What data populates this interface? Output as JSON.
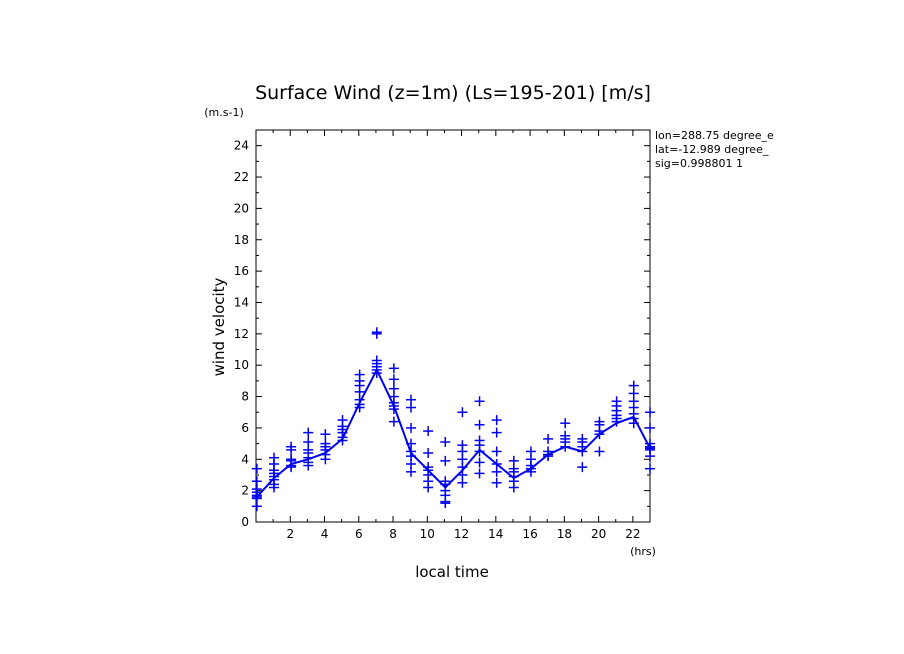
{
  "chart_data": {
    "type": "line",
    "title": "Surface Wind (z=1m) (Ls=195-201) [m/s]",
    "units": "(m.s-1)",
    "xlabel": "local time",
    "xunit": "(hrs)",
    "ylabel": "wind velocity",
    "xlim": [
      0,
      23
    ],
    "ylim": [
      0,
      25
    ],
    "xticks": [
      2,
      4,
      6,
      8,
      10,
      12,
      14,
      16,
      18,
      20,
      22
    ],
    "yticks": [
      0,
      2,
      4,
      6,
      8,
      10,
      12,
      14,
      16,
      18,
      20,
      22,
      24
    ],
    "info_lines": [
      "lon=288.75 degree_e",
      "lat=-12.989 degree_",
      "sig=0.998801 1"
    ],
    "color": "#0000ee",
    "series": [
      {
        "style": "line",
        "x": [
          0.05,
          1.05,
          2.05,
          3.05,
          4.05,
          5.05,
          6.05,
          7.05,
          8.05,
          9.05,
          10.05,
          11.05,
          12.05,
          13.05,
          14.05,
          15.05,
          16.05,
          17.05,
          18.05,
          19.05,
          20.05,
          21.05,
          22.05,
          23.0
        ],
        "values": [
          1.6,
          2.8,
          3.7,
          4.0,
          4.4,
          5.3,
          7.6,
          9.7,
          7.4,
          4.4,
          3.3,
          2.2,
          3.3,
          4.6,
          3.7,
          2.8,
          3.4,
          4.3,
          4.8,
          4.5,
          5.6,
          6.3,
          6.7,
          4.7
        ]
      },
      {
        "style": "markers",
        "marker": "+",
        "points": [
          [
            0.05,
            3.4
          ],
          [
            0.05,
            2.6
          ],
          [
            0.05,
            2.1
          ],
          [
            0.05,
            1.9
          ],
          [
            0.05,
            1.7
          ],
          [
            0.05,
            1.6
          ],
          [
            0.05,
            1.5
          ],
          [
            0.05,
            1.0
          ],
          [
            1.05,
            4.1
          ],
          [
            1.05,
            3.7
          ],
          [
            1.05,
            3.3
          ],
          [
            1.05,
            3.1
          ],
          [
            1.05,
            2.9
          ],
          [
            1.05,
            2.7
          ],
          [
            1.05,
            2.4
          ],
          [
            1.05,
            2.2
          ],
          [
            2.05,
            4.8
          ],
          [
            2.05,
            4.6
          ],
          [
            2.05,
            4.0
          ],
          [
            2.05,
            3.9
          ],
          [
            2.05,
            3.6
          ],
          [
            2.05,
            3.5
          ],
          [
            3.05,
            5.7
          ],
          [
            3.05,
            5.1
          ],
          [
            3.05,
            4.6
          ],
          [
            3.05,
            4.4
          ],
          [
            3.05,
            4.1
          ],
          [
            3.05,
            3.8
          ],
          [
            3.05,
            3.6
          ],
          [
            4.05,
            5.6
          ],
          [
            4.05,
            5.0
          ],
          [
            4.05,
            4.8
          ],
          [
            4.05,
            4.6
          ],
          [
            4.05,
            4.3
          ],
          [
            4.05,
            4.0
          ],
          [
            5.05,
            6.5
          ],
          [
            5.05,
            6.1
          ],
          [
            5.05,
            5.9
          ],
          [
            5.05,
            5.7
          ],
          [
            5.05,
            5.4
          ],
          [
            5.05,
            5.2
          ],
          [
            6.05,
            9.4
          ],
          [
            6.05,
            9.0
          ],
          [
            6.05,
            8.7
          ],
          [
            6.05,
            8.3
          ],
          [
            6.05,
            7.8
          ],
          [
            6.05,
            7.5
          ],
          [
            6.05,
            7.3
          ],
          [
            7.05,
            12.1
          ],
          [
            7.05,
            12.0
          ],
          [
            7.05,
            10.3
          ],
          [
            7.05,
            10.1
          ],
          [
            7.05,
            9.9
          ],
          [
            7.05,
            9.7
          ],
          [
            7.05,
            9.5
          ],
          [
            8.05,
            9.8
          ],
          [
            8.05,
            9.1
          ],
          [
            8.05,
            8.5
          ],
          [
            8.05,
            8.0
          ],
          [
            8.05,
            7.6
          ],
          [
            8.05,
            7.4
          ],
          [
            8.05,
            7.2
          ],
          [
            8.05,
            6.4
          ],
          [
            9.05,
            7.8
          ],
          [
            9.05,
            7.3
          ],
          [
            9.05,
            6.0
          ],
          [
            9.05,
            5.0
          ],
          [
            9.05,
            4.5
          ],
          [
            9.05,
            4.2
          ],
          [
            9.05,
            3.7
          ],
          [
            9.05,
            3.2
          ],
          [
            10.05,
            5.8
          ],
          [
            10.05,
            4.4
          ],
          [
            10.05,
            3.5
          ],
          [
            10.05,
            3.3
          ],
          [
            10.05,
            3.0
          ],
          [
            10.05,
            2.6
          ],
          [
            10.05,
            2.2
          ],
          [
            11.05,
            5.1
          ],
          [
            11.05,
            3.9
          ],
          [
            11.05,
            2.6
          ],
          [
            11.05,
            2.4
          ],
          [
            11.05,
            2.0
          ],
          [
            11.05,
            1.7
          ],
          [
            11.05,
            1.3
          ],
          [
            11.05,
            1.2
          ],
          [
            12.05,
            7.0
          ],
          [
            12.05,
            4.9
          ],
          [
            12.05,
            4.5
          ],
          [
            12.05,
            4.0
          ],
          [
            12.05,
            3.5
          ],
          [
            12.05,
            3.0
          ],
          [
            12.05,
            2.5
          ],
          [
            13.05,
            7.7
          ],
          [
            13.05,
            6.2
          ],
          [
            13.05,
            5.2
          ],
          [
            13.05,
            4.9
          ],
          [
            13.05,
            4.5
          ],
          [
            13.05,
            3.8
          ],
          [
            13.05,
            3.1
          ],
          [
            14.05,
            6.5
          ],
          [
            14.05,
            5.7
          ],
          [
            14.05,
            4.5
          ],
          [
            14.05,
            3.7
          ],
          [
            14.05,
            3.2
          ],
          [
            14.05,
            2.5
          ],
          [
            15.05,
            3.9
          ],
          [
            15.05,
            3.4
          ],
          [
            15.05,
            3.2
          ],
          [
            15.05,
            2.9
          ],
          [
            15.05,
            2.6
          ],
          [
            15.05,
            2.2
          ],
          [
            16.05,
            4.5
          ],
          [
            16.05,
            4.0
          ],
          [
            16.05,
            3.6
          ],
          [
            16.05,
            3.4
          ],
          [
            16.05,
            3.2
          ],
          [
            17.05,
            5.3
          ],
          [
            17.05,
            4.5
          ],
          [
            17.05,
            4.3
          ],
          [
            17.05,
            4.2
          ],
          [
            18.05,
            6.3
          ],
          [
            18.05,
            5.5
          ],
          [
            18.05,
            5.3
          ],
          [
            18.05,
            5.1
          ],
          [
            18.05,
            4.8
          ],
          [
            19.05,
            5.3
          ],
          [
            19.05,
            5.1
          ],
          [
            19.05,
            4.8
          ],
          [
            19.05,
            4.5
          ],
          [
            19.05,
            3.5
          ],
          [
            20.05,
            6.4
          ],
          [
            20.05,
            6.2
          ],
          [
            20.05,
            5.8
          ],
          [
            20.05,
            5.6
          ],
          [
            20.05,
            4.5
          ],
          [
            21.05,
            7.7
          ],
          [
            21.05,
            7.4
          ],
          [
            21.05,
            7.1
          ],
          [
            21.05,
            6.8
          ],
          [
            21.05,
            6.6
          ],
          [
            21.05,
            6.4
          ],
          [
            22.05,
            8.7
          ],
          [
            22.05,
            8.2
          ],
          [
            22.05,
            7.7
          ],
          [
            22.05,
            7.3
          ],
          [
            22.05,
            6.9
          ],
          [
            22.05,
            6.6
          ],
          [
            22.05,
            6.3
          ],
          [
            23.0,
            7.0
          ],
          [
            23.0,
            6.0
          ],
          [
            23.0,
            5.0
          ],
          [
            23.0,
            4.8
          ],
          [
            23.0,
            4.7
          ],
          [
            23.0,
            4.6
          ],
          [
            23.0,
            4.2
          ],
          [
            23.0,
            3.4
          ]
        ]
      }
    ]
  }
}
